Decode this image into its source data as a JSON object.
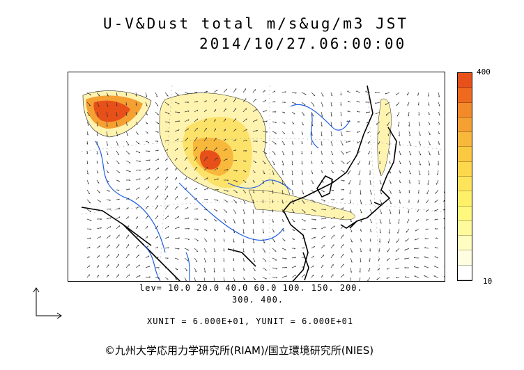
{
  "title_line1": "U-V&Dust total m/s&ug/m3 JST",
  "title_line2": "2014/10/27.06:00:00",
  "legend": {
    "max_label": "400",
    "min_label": "10",
    "colors": [
      "#e8501a",
      "#ee6a1e",
      "#f28a2a",
      "#f5a033",
      "#f8b83b",
      "#fbc842",
      "#fdd84c",
      "#fee45a",
      "#fff06a",
      "#fff87e",
      "#fffb9c",
      "#fffdc0",
      "#fffee0",
      "#ffffff"
    ]
  },
  "levels_line1": "lev= 10.0 20.0 40.0 60.0 100. 150. 200.",
  "levels_line2": "300. 400.",
  "unit_line": "XUNIT = 6.000E+01, YUNIT = 6.000E+01",
  "credit": "©九州大学応用力学研究所(RIAM)/国立環境研究所(NIES)",
  "colors": {
    "coast": "#000000",
    "rivers": "#1f5fe0",
    "dust_light": "#fff3b0",
    "dust_mid": "#fde26a",
    "dust_high": "#f5a033",
    "dust_peak": "#e8501a"
  }
}
